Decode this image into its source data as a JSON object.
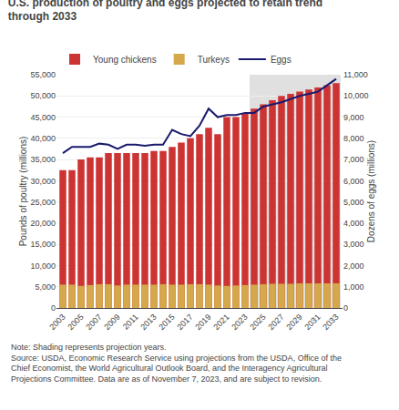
{
  "chart_data": {
    "type": "bar",
    "title": "U.S. production of poultry and eggs projected to retain trend through 2033",
    "ylabel": "Pounds of poultry (millions)",
    "y2label": "Dozens of eggs (millions)",
    "annotations": [
      "Note: Shading represents projection years.",
      "Source: USDA, Economic Research Service using projections from the USDA, Office of the Chief Economist, the World Agricultural Outlook Board, and the Interagency Agricultural Projections Committee. Data are as of November 7, 2023, and are subject to revision."
    ],
    "x": [
      2003,
      2004,
      2005,
      2006,
      2007,
      2008,
      2009,
      2010,
      2011,
      2012,
      2013,
      2014,
      2015,
      2016,
      2017,
      2018,
      2019,
      2020,
      2021,
      2022,
      2023,
      2024,
      2025,
      2026,
      2027,
      2028,
      2029,
      2030,
      2031,
      2032,
      2033
    ],
    "series": [
      {
        "name": "Young chickens",
        "type": "bar",
        "color": "#CC3333",
        "values": [
          32500,
          32500,
          35000,
          35500,
          35500,
          36500,
          36500,
          36500,
          36500,
          36500,
          37000,
          37000,
          38000,
          39000,
          40000,
          41000,
          42500,
          41000,
          45000,
          45000,
          46000,
          47000,
          48000,
          49000,
          50000,
          50500,
          51000,
          51500,
          52000,
          52500,
          53000
        ]
      },
      {
        "name": "Turkeys",
        "type": "bar",
        "color": "#D4A84B",
        "values": [
          5500,
          5500,
          5200,
          5400,
          5600,
          5600,
          5300,
          5500,
          5500,
          5500,
          5500,
          5600,
          5500,
          5500,
          5600,
          5600,
          5500,
          5300,
          5200,
          5300,
          5400,
          5500,
          5600,
          5700,
          5700,
          5700,
          5800,
          5800,
          5800,
          5800,
          5800
        ]
      },
      {
        "name": "Eggs",
        "type": "line",
        "color": "#1a1a6e",
        "axis": "y2",
        "values": [
          7300,
          7600,
          7600,
          7600,
          7750,
          7700,
          7500,
          7700,
          7700,
          7650,
          7700,
          7700,
          8400,
          8200,
          8100,
          8600,
          9400,
          9000,
          9100,
          9100,
          9200,
          9200,
          9500,
          9600,
          9700,
          9850,
          10000,
          10100,
          10200,
          10500,
          10800
        ]
      }
    ],
    "shading": {
      "from": 2024,
      "to": 2033,
      "color": "#e0e0e0"
    },
    "xlim": [
      2002.3,
      2033.7
    ],
    "xticks": [
      2003,
      2005,
      2007,
      2009,
      2011,
      2013,
      2015,
      2017,
      2019,
      2021,
      2023,
      2025,
      2027,
      2029,
      2031,
      2033
    ],
    "ylim": [
      0,
      55000
    ],
    "yticks": [
      0,
      {
        "value": 5000,
        "label": "5,000"
      },
      {
        "value": 10000,
        "label": "10,000"
      },
      {
        "value": 15000,
        "label": "15,000"
      },
      {
        "value": 20000,
        "label": "20,000"
      },
      {
        "value": 25000,
        "label": "25,000"
      },
      {
        "value": 30000,
        "label": "30,000"
      },
      {
        "value": 35000,
        "label": "35,000"
      },
      {
        "value": 40000,
        "label": "40,000"
      },
      {
        "value": 45000,
        "label": "45,000"
      },
      {
        "value": 50000,
        "label": "50,000"
      },
      {
        "value": 55000,
        "label": "55,000"
      }
    ],
    "y2lim": [
      0,
      11000
    ],
    "y2ticks": [
      0,
      {
        "value": 1000,
        "label": "1,000"
      },
      {
        "value": 2000,
        "label": "2,000"
      },
      {
        "value": 3000,
        "label": "3,000"
      },
      {
        "value": 4000,
        "label": "4,000"
      },
      {
        "value": 5000,
        "label": "5,000"
      },
      {
        "value": 6000,
        "label": "6,000"
      },
      {
        "value": 7000,
        "label": "7,000"
      },
      {
        "value": 8000,
        "label": "8,000"
      },
      {
        "value": 9000,
        "label": "9,000"
      },
      {
        "value": 10000,
        "label": "10,000"
      },
      {
        "value": 11000,
        "label": "11,000"
      }
    ],
    "grid": "y",
    "legend": "upper left"
  }
}
